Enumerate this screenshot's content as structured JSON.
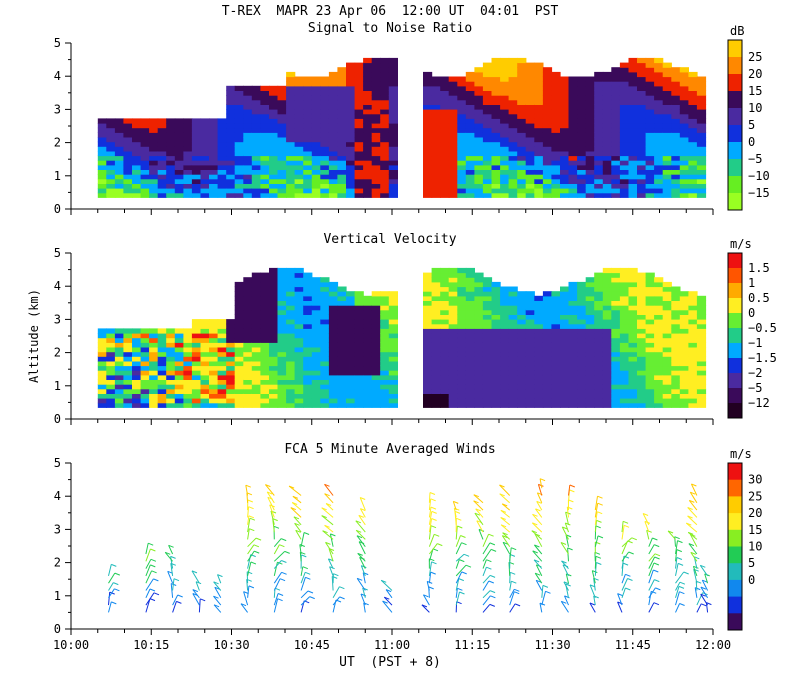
{
  "figure": {
    "title": "T-REX  MAPR 23 Apr 06  12:00 UT  04:01  PST",
    "xlabel": "UT  (PST + 8)",
    "ylabel": "Altitude (km)"
  },
  "chart_data": [
    {
      "type": "heatmap",
      "title": "Signal to Noise Ratio",
      "xlabel": "UT  (PST + 8)",
      "ylabel": "Altitude (km)",
      "x_range_minutes": [
        0,
        120
      ],
      "x_ticks": [
        "10:00",
        "10:15",
        "10:30",
        "10:45",
        "11:00",
        "11:15",
        "11:30",
        "11:45",
        "12:00"
      ],
      "ylim": [
        0,
        5
      ],
      "y_ticks": [
        0,
        1,
        2,
        3,
        4,
        5
      ],
      "data_gap_minutes": [
        59.5,
        64.5
      ],
      "colorbar": {
        "unit": "dB",
        "labels": [
          "25",
          "20",
          "15",
          "10",
          "5",
          "0",
          "−5",
          "−10",
          "−15"
        ],
        "colors": [
          "#ffcc00",
          "#ff8800",
          "#ee2200",
          "#3a0a5a",
          "#4a2aa0",
          "#1030dd",
          "#00aaff",
          "#22cc88",
          "#66ee22",
          "#99ff22"
        ]
      }
    },
    {
      "type": "heatmap",
      "title": "Vertical Velocity",
      "xlabel": "UT  (PST + 8)",
      "ylabel": "Altitude (km)",
      "x_range_minutes": [
        0,
        120
      ],
      "x_ticks": [
        "10:00",
        "10:15",
        "10:30",
        "10:45",
        "11:00",
        "11:15",
        "11:30",
        "11:45",
        "12:00"
      ],
      "ylim": [
        0,
        5
      ],
      "y_ticks": [
        0,
        1,
        2,
        3,
        4,
        5
      ],
      "data_gap_minutes": [
        59.5,
        64.5
      ],
      "colorbar": {
        "unit": "m/s",
        "labels": [
          "1.5",
          "1",
          "0.5",
          "0",
          "−0.5",
          "−1",
          "−1.5",
          "−2",
          "−5",
          "−12"
        ],
        "colors": [
          "#ee1111",
          "#ff5500",
          "#ffaa00",
          "#ffee22",
          "#66ee33",
          "#22cc88",
          "#00aaff",
          "#1030dd",
          "#4a2aa0",
          "#3a0a5a",
          "#220022"
        ]
      }
    },
    {
      "type": "scatter",
      "title": "FCA 5 Minute Averaged Winds",
      "xlabel": "UT  (PST + 8)",
      "ylabel": "Altitude (km)",
      "x_range_minutes": [
        0,
        120
      ],
      "x_ticks": [
        "10:00",
        "10:15",
        "10:30",
        "10:45",
        "11:00",
        "11:15",
        "11:30",
        "11:45",
        "12:00"
      ],
      "ylim": [
        0,
        5
      ],
      "y_ticks": [
        0,
        1,
        2,
        3,
        4,
        5
      ],
      "columns_minutes": [
        7,
        14,
        19,
        24,
        28,
        33,
        38,
        43,
        49,
        55,
        60,
        67,
        72,
        77,
        82,
        88,
        93,
        98,
        103,
        108,
        113,
        117,
        119
      ],
      "column_tops_km": [
        1.8,
        2.4,
        2.4,
        1.5,
        1.5,
        4.2,
        4.1,
        4.1,
        4.1,
        3.8,
        1.2,
        4.0,
        3.8,
        3.9,
        4.2,
        4.3,
        4.2,
        3.6,
        3.1,
        3.2,
        2.8,
        4.2,
        1.8
      ],
      "colorbar": {
        "unit": "m/s",
        "labels": [
          "30",
          "25",
          "20",
          "15",
          "10",
          "5",
          "0"
        ],
        "colors": [
          "#ee1111",
          "#ff6600",
          "#ffcc00",
          "#ffee22",
          "#88ee22",
          "#22cc55",
          "#22bbbb",
          "#1188ee",
          "#1030dd",
          "#3a0a5a"
        ]
      }
    }
  ]
}
